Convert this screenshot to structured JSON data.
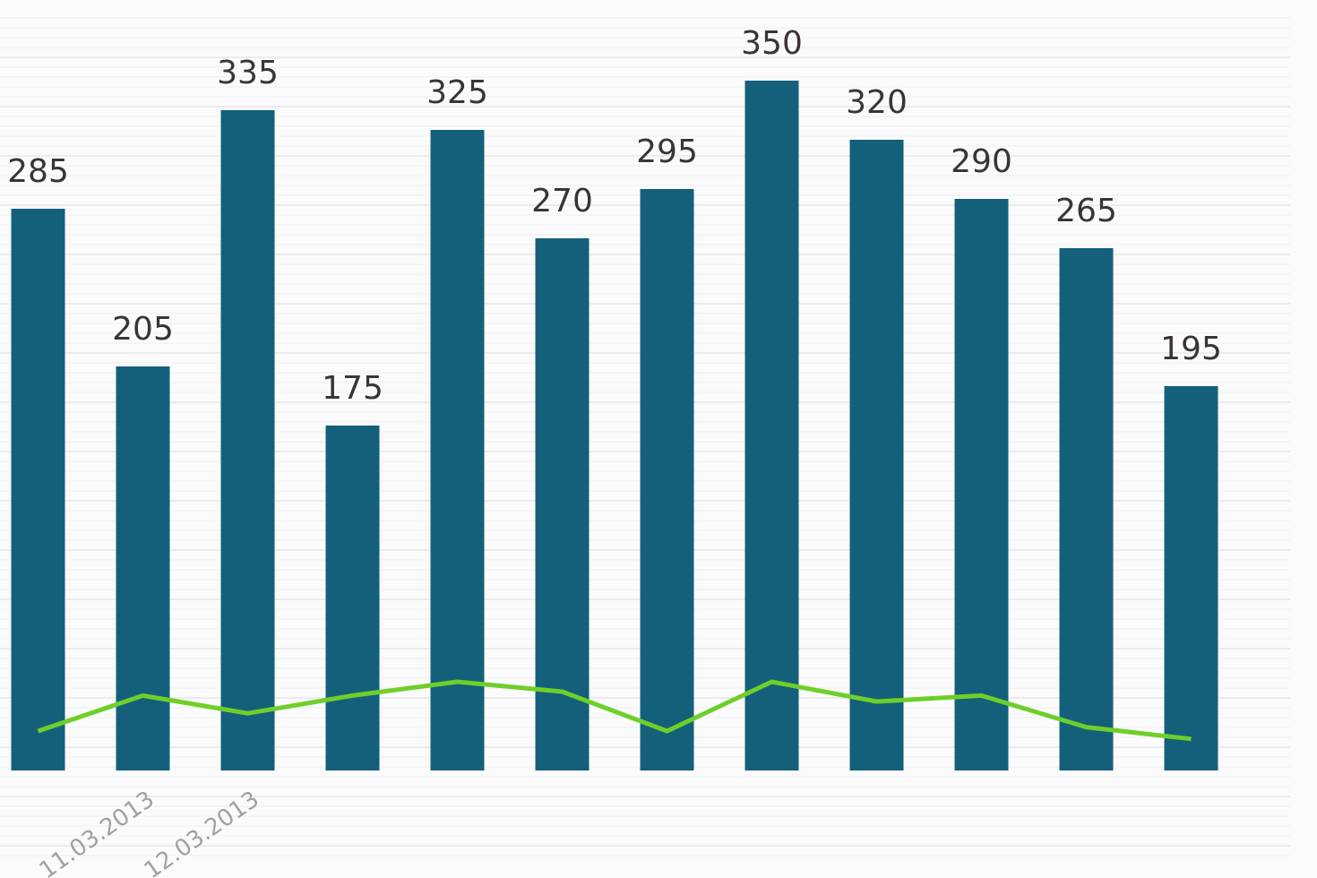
{
  "chart_data": {
    "type": "bar",
    "categories": [
      null,
      "11.03.2013",
      "12.03.2013",
      null,
      null,
      null,
      null,
      null,
      null,
      null,
      null,
      null
    ],
    "series": [
      {
        "type": "bar",
        "color": "#14607b",
        "values": [
          285,
          205,
          335,
          175,
          325,
          270,
          295,
          350,
          320,
          290,
          265,
          195
        ]
      },
      {
        "type": "line",
        "color": "#6fcf2a",
        "values": [
          20,
          38,
          29,
          38,
          45,
          40,
          20,
          45,
          35,
          38,
          22,
          16
        ]
      }
    ]
  }
}
